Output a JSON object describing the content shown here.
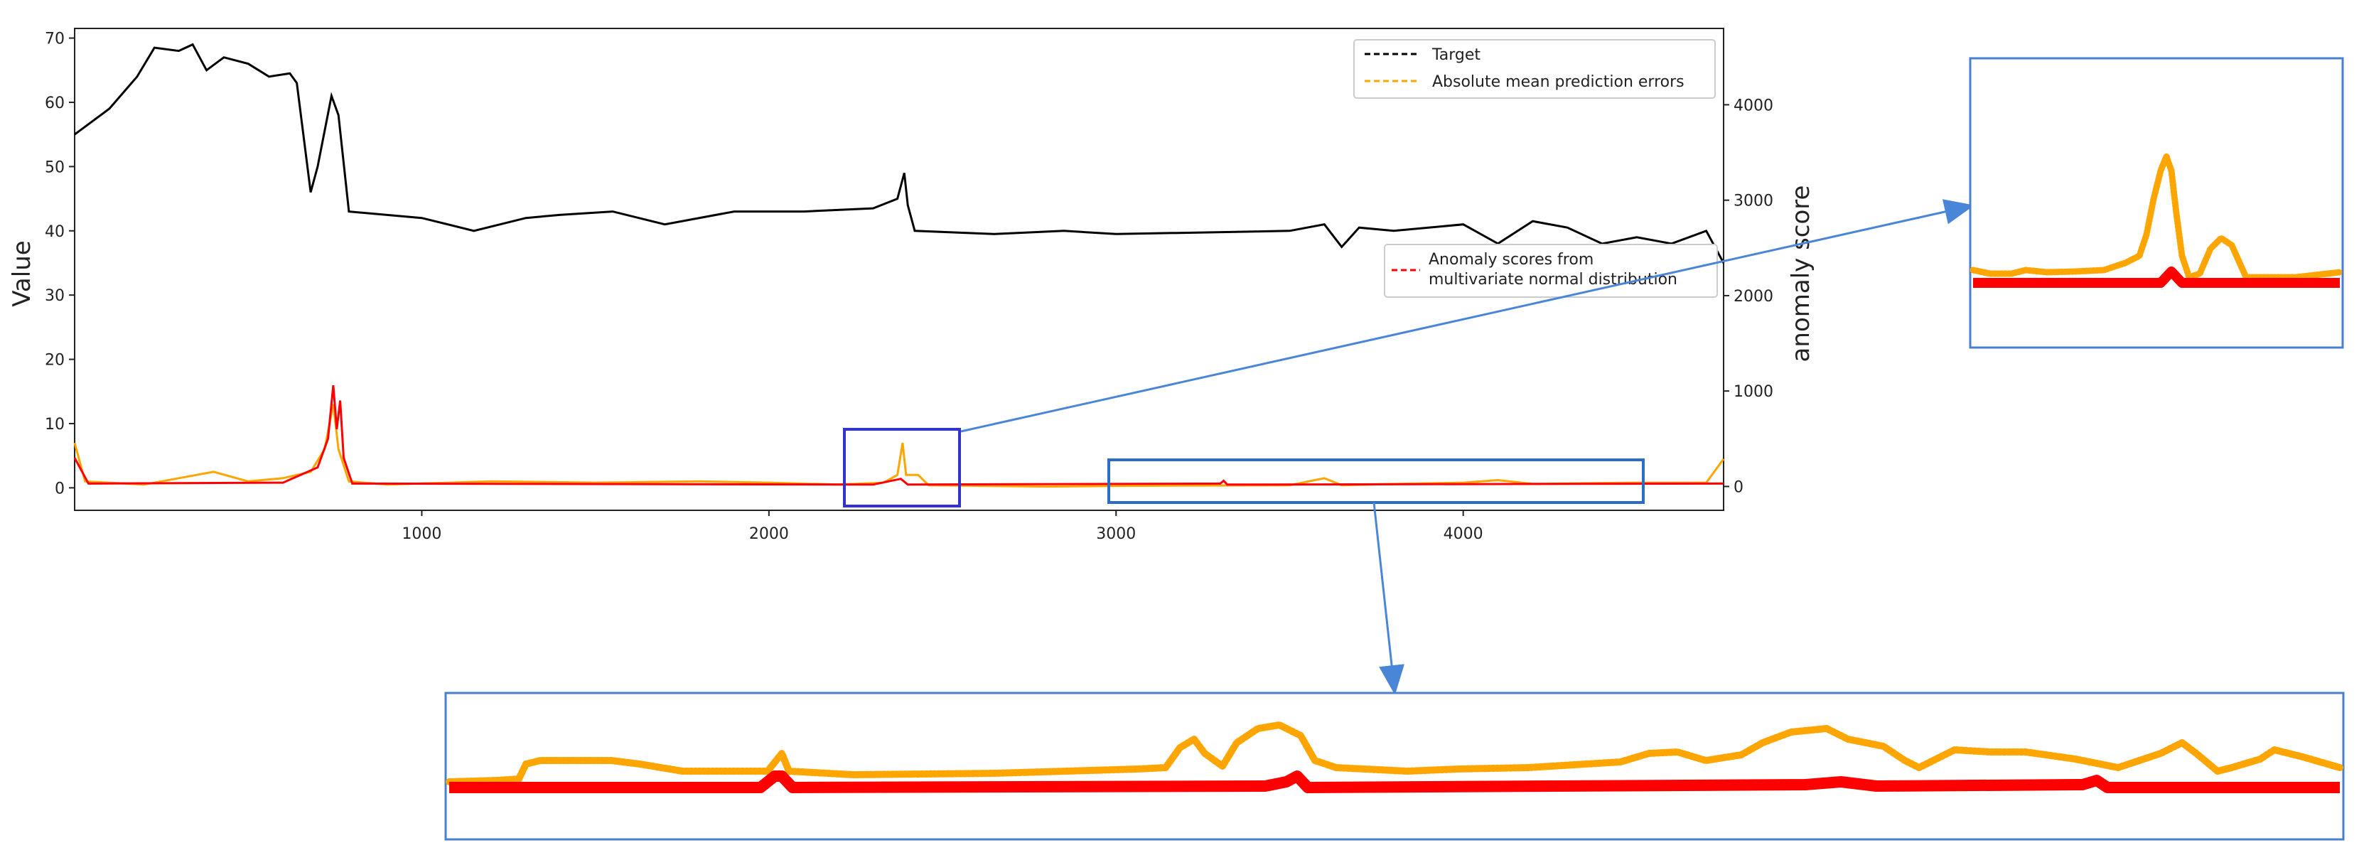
{
  "colors": {
    "target": "#000000",
    "errors": "#FFA500",
    "anomaly": "#FF0000",
    "box_small": "#3333CC",
    "box_wide": "#2B6CC4",
    "inset_border": "#4A7FD0",
    "arrow": "#4A86D8"
  },
  "chart_data": {
    "type": "line",
    "x_ticks": [
      "1000",
      "2000",
      "3000",
      "4000"
    ],
    "xlim": [
      0,
      4750
    ],
    "left_axis": {
      "label": "Value",
      "ylim": [
        -3.5,
        71.5
      ],
      "ticks": [
        "0",
        "10",
        "20",
        "30",
        "40",
        "50",
        "60",
        "70"
      ]
    },
    "right_axis": {
      "label": "anomaly score",
      "ylim": [
        -250,
        4800
      ],
      "ticks": [
        "0",
        "1000",
        "2000",
        "3000",
        "4000"
      ]
    },
    "legend_top": [
      "Target",
      "Absolute mean prediction errors"
    ],
    "legend_bottom": [
      "Anomaly scores from multivariate normal distribution"
    ],
    "series": [
      {
        "name": "Target",
        "axis": "left",
        "points": [
          [
            0,
            55
          ],
          [
            100,
            59
          ],
          [
            180,
            64
          ],
          [
            230,
            68.5
          ],
          [
            300,
            68
          ],
          [
            340,
            69
          ],
          [
            380,
            65
          ],
          [
            430,
            67
          ],
          [
            500,
            66
          ],
          [
            560,
            64
          ],
          [
            620,
            64.5
          ],
          [
            640,
            63
          ],
          [
            680,
            46
          ],
          [
            700,
            50
          ],
          [
            740,
            61
          ],
          [
            760,
            58
          ],
          [
            790,
            43
          ],
          [
            1000,
            42
          ],
          [
            1150,
            40
          ],
          [
            1300,
            42
          ],
          [
            1400,
            42.5
          ],
          [
            1550,
            43
          ],
          [
            1700,
            41
          ],
          [
            1900,
            43
          ],
          [
            2100,
            43
          ],
          [
            2300,
            43.5
          ],
          [
            2370,
            45
          ],
          [
            2390,
            49
          ],
          [
            2400,
            44
          ],
          [
            2420,
            40
          ],
          [
            2650,
            39.5
          ],
          [
            2850,
            40
          ],
          [
            3000,
            39.5
          ],
          [
            3500,
            40
          ],
          [
            3600,
            41
          ],
          [
            3650,
            37.5
          ],
          [
            3700,
            40.5
          ],
          [
            3800,
            40
          ],
          [
            4000,
            41
          ],
          [
            4100,
            38
          ],
          [
            4200,
            41.5
          ],
          [
            4300,
            40.5
          ],
          [
            4400,
            38
          ],
          [
            4500,
            39
          ],
          [
            4600,
            38
          ],
          [
            4700,
            40
          ],
          [
            4750,
            35
          ]
        ]
      },
      {
        "name": "Absolute mean prediction errors",
        "axis": "left",
        "points": [
          [
            0,
            7
          ],
          [
            30,
            1
          ],
          [
            200,
            0.5
          ],
          [
            300,
            1.5
          ],
          [
            400,
            2.5
          ],
          [
            500,
            1
          ],
          [
            600,
            1.5
          ],
          [
            680,
            2.5
          ],
          [
            720,
            6
          ],
          [
            745,
            13
          ],
          [
            760,
            6
          ],
          [
            790,
            1
          ],
          [
            900,
            0.5
          ],
          [
            1200,
            1
          ],
          [
            1500,
            0.8
          ],
          [
            1800,
            1
          ],
          [
            2000,
            0.8
          ],
          [
            2200,
            0.5
          ],
          [
            2330,
            0.8
          ],
          [
            2370,
            2
          ],
          [
            2385,
            7
          ],
          [
            2395,
            2
          ],
          [
            2430,
            2
          ],
          [
            2460,
            0.4
          ],
          [
            2800,
            0.2
          ],
          [
            3000,
            0.3
          ],
          [
            3500,
            0.4
          ],
          [
            3600,
            1.5
          ],
          [
            3650,
            0.4
          ],
          [
            3800,
            0.6
          ],
          [
            4000,
            0.8
          ],
          [
            4100,
            1.2
          ],
          [
            4200,
            0.6
          ],
          [
            4500,
            0.8
          ],
          [
            4700,
            0.8
          ],
          [
            4750,
            4.5
          ]
        ]
      },
      {
        "name": "Anomaly scores from multivariate normal distribution",
        "axis": "right",
        "points": [
          [
            0,
            300
          ],
          [
            40,
            30
          ],
          [
            600,
            40
          ],
          [
            700,
            200
          ],
          [
            730,
            500
          ],
          [
            745,
            1060
          ],
          [
            755,
            600
          ],
          [
            765,
            900
          ],
          [
            775,
            300
          ],
          [
            800,
            30
          ],
          [
            2300,
            20
          ],
          [
            2380,
            80
          ],
          [
            2400,
            20
          ],
          [
            3300,
            30
          ],
          [
            3310,
            60
          ],
          [
            3320,
            20
          ],
          [
            4750,
            30
          ]
        ]
      }
    ]
  }
}
